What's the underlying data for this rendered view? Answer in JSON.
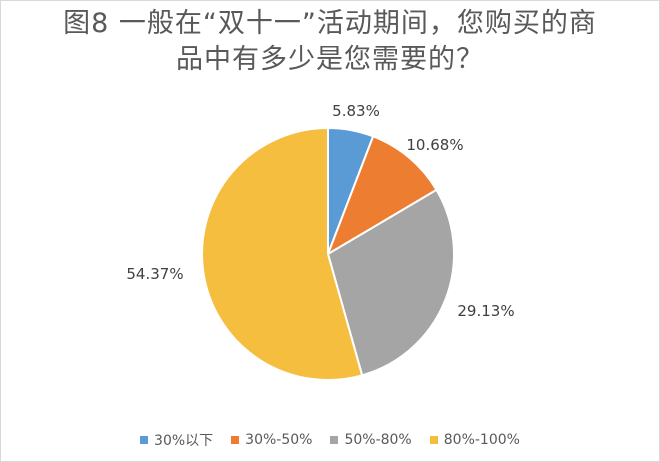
{
  "title": {
    "line1": "图8  一般在“双十一”活动期间，您购买的商",
    "line2": "品中有多少是您需要的？"
  },
  "chart_data": {
    "type": "pie",
    "title": "图8  一般在“双十一”活动期间，您购买的商品中有多少是您需要的？",
    "slices": [
      {
        "label": "30%以下",
        "value": 5.83,
        "display": "5.83%",
        "color": "#5B9BD5"
      },
      {
        "label": "30%-50%",
        "value": 10.68,
        "display": "10.68%",
        "color": "#ED7D31"
      },
      {
        "label": "50%-80%",
        "value": 29.13,
        "display": "29.13%",
        "color": "#A5A5A5"
      },
      {
        "label": "80%-100%",
        "value": 54.37,
        "display": "54.37%",
        "color": "#F5BE3F"
      }
    ],
    "start_angle_deg": 0,
    "direction": "clockwise",
    "legend_position": "bottom"
  }
}
